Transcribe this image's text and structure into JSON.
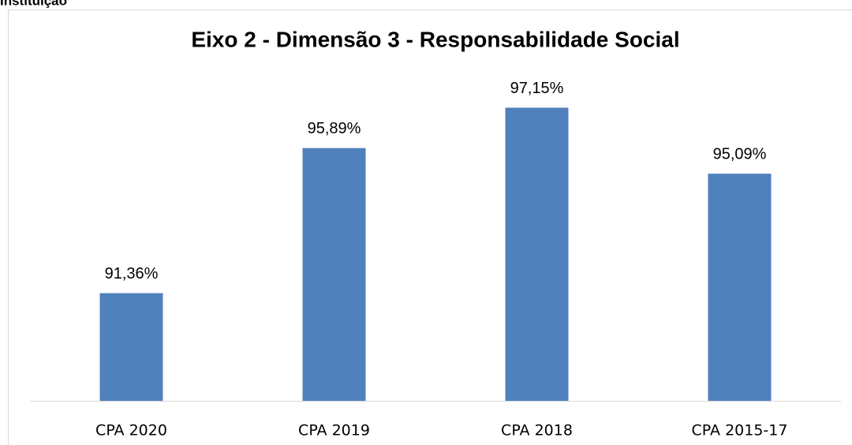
{
  "header": {
    "text": "Instituição"
  },
  "chart_data": {
    "type": "bar",
    "title": "Eixo 2 - Dimensão 3 - Responsabilidade Social",
    "categories": [
      "CPA 2020",
      "CPA 2019",
      "CPA 2018",
      "CPA 2015-17"
    ],
    "values": [
      91.36,
      95.89,
      97.15,
      95.09
    ],
    "value_labels": [
      "91,36%",
      "95,89%",
      "97,15%",
      "95,09%"
    ],
    "color": "#4f81bd",
    "ylim": [
      88,
      98
    ]
  }
}
